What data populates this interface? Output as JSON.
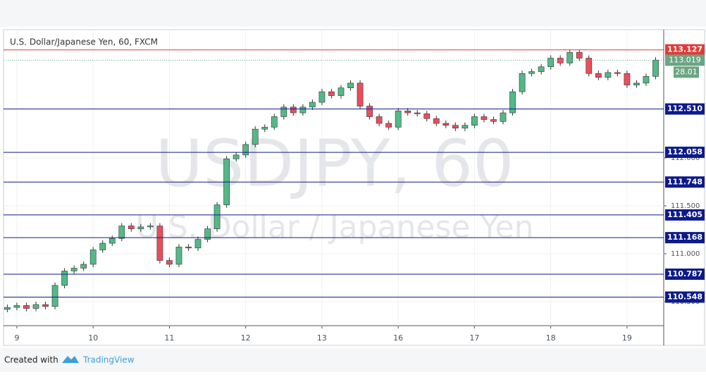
{
  "chart_data": {
    "type": "candlestick",
    "title": "U.S. Dollar/Japanese Yen, 60, FXCM",
    "watermark": "USDJPY, 60",
    "watermark_subtitle": "U.S. Dollar / Japanese Yen",
    "open": [
      110.42,
      110.44,
      110.46,
      110.43,
      110.47,
      110.45,
      110.67,
      110.82,
      110.85,
      110.89,
      111.04,
      111.11,
      111.16,
      111.29,
      111.26,
      111.28,
      111.29,
      110.93,
      110.89,
      111.07,
      111.06,
      111.15,
      111.26,
      111.51,
      111.99,
      112.03,
      112.14,
      112.3,
      112.32,
      112.43,
      112.53,
      112.47,
      112.53,
      112.58,
      112.69,
      112.65,
      112.73,
      112.78,
      112.54,
      112.43,
      112.36,
      112.32,
      112.49,
      112.47,
      112.46,
      112.41,
      112.36,
      112.34,
      112.31,
      112.34,
      112.43,
      112.4,
      112.38,
      112.47,
      112.69,
      112.88,
      112.9,
      112.95,
      113.04,
      112.99,
      113.1,
      113.04,
      112.88,
      112.84,
      112.89,
      112.88,
      112.76,
      112.78,
      112.85
    ],
    "high": [
      110.47,
      110.49,
      110.49,
      110.5,
      110.5,
      110.7,
      110.85,
      110.88,
      110.92,
      111.07,
      111.14,
      111.19,
      111.32,
      111.32,
      111.31,
      111.32,
      111.32,
      110.96,
      111.1,
      111.1,
      111.18,
      111.29,
      111.54,
      112.02,
      112.06,
      112.17,
      112.33,
      112.35,
      112.46,
      112.56,
      112.56,
      112.56,
      112.61,
      112.72,
      112.72,
      112.76,
      112.81,
      112.81,
      112.57,
      112.46,
      112.39,
      112.52,
      112.52,
      112.5,
      112.49,
      112.44,
      112.39,
      112.37,
      112.37,
      112.46,
      112.46,
      112.43,
      112.5,
      112.72,
      112.91,
      112.93,
      112.98,
      113.07,
      113.07,
      113.13,
      113.13,
      113.07,
      112.91,
      112.92,
      112.92,
      112.91,
      112.81,
      112.88,
      113.05
    ],
    "low": [
      110.39,
      110.41,
      110.4,
      110.4,
      110.42,
      110.42,
      110.64,
      110.79,
      110.82,
      110.86,
      111.01,
      111.08,
      111.13,
      111.23,
      111.23,
      111.25,
      110.9,
      110.86,
      110.86,
      111.03,
      111.03,
      111.12,
      111.23,
      111.48,
      111.96,
      112.0,
      112.11,
      112.27,
      112.29,
      112.4,
      112.44,
      112.44,
      112.5,
      112.55,
      112.62,
      112.62,
      112.7,
      112.51,
      112.4,
      112.33,
      112.29,
      112.29,
      112.44,
      112.43,
      112.38,
      112.33,
      112.31,
      112.28,
      112.28,
      112.31,
      112.37,
      112.35,
      112.35,
      112.44,
      112.66,
      112.85,
      112.87,
      112.92,
      112.96,
      112.96,
      113.01,
      112.85,
      112.81,
      112.81,
      112.85,
      112.73,
      112.73,
      112.75,
      112.82
    ],
    "close": [
      110.44,
      110.46,
      110.43,
      110.47,
      110.45,
      110.67,
      110.82,
      110.85,
      110.89,
      111.04,
      111.11,
      111.16,
      111.29,
      111.26,
      111.28,
      111.29,
      110.93,
      110.89,
      111.07,
      111.06,
      111.15,
      111.26,
      111.51,
      111.99,
      112.03,
      112.14,
      112.3,
      112.32,
      112.43,
      112.53,
      112.47,
      112.53,
      112.58,
      112.69,
      112.65,
      112.73,
      112.78,
      112.54,
      112.43,
      112.36,
      112.32,
      112.49,
      112.47,
      112.46,
      112.41,
      112.36,
      112.34,
      112.31,
      112.34,
      112.43,
      112.4,
      112.38,
      112.47,
      112.69,
      112.88,
      112.9,
      112.95,
      113.04,
      112.99,
      113.1,
      113.04,
      112.88,
      112.84,
      112.89,
      112.88,
      112.76,
      112.78,
      112.85,
      113.02
    ],
    "up_color": "#53b987",
    "down_color": "#eb4d5c",
    "xlim": [
      -0.4,
      68.85
    ],
    "xticks": [
      {
        "value": 1,
        "label": "9"
      },
      {
        "value": 9,
        "label": "10"
      },
      {
        "value": 17,
        "label": "11"
      },
      {
        "value": 25,
        "label": "12"
      },
      {
        "value": 33,
        "label": "13"
      },
      {
        "value": 41,
        "label": "16"
      },
      {
        "value": 49,
        "label": "17"
      },
      {
        "value": 57,
        "label": "18"
      },
      {
        "value": 65,
        "label": "19"
      }
    ],
    "ylim": [
      110.25,
      113.338
    ],
    "yticks": [
      {
        "value": 110.5,
        "label": "110.500"
      },
      {
        "value": 111,
        "label": "111.000"
      },
      {
        "value": 111.5,
        "label": "111.500"
      },
      {
        "value": 112,
        "label": "112.000"
      }
    ],
    "grid": true,
    "levels": [
      {
        "value": 113.127,
        "color": "#e53935"
      },
      {
        "value": 112.51,
        "label": "112.510",
        "color": "#0d1a8c"
      },
      {
        "value": 112.058,
        "color": "#0d1a8c"
      },
      {
        "value": 111.748,
        "color": "#0d1a8c"
      },
      {
        "value": 111.405,
        "color": "#0d1a8c"
      },
      {
        "value": 111.168,
        "color": "#0d1a8c"
      },
      {
        "value": 110.787,
        "color": "#0d1a8c"
      },
      {
        "value": 110.548,
        "color": "#0d1a8c"
      }
    ],
    "current_price": 113.019,
    "current_color": "#6ba583",
    "countdown": "28.01"
  },
  "footer": {
    "created_with": "Created with",
    "brand": "TradingView"
  }
}
